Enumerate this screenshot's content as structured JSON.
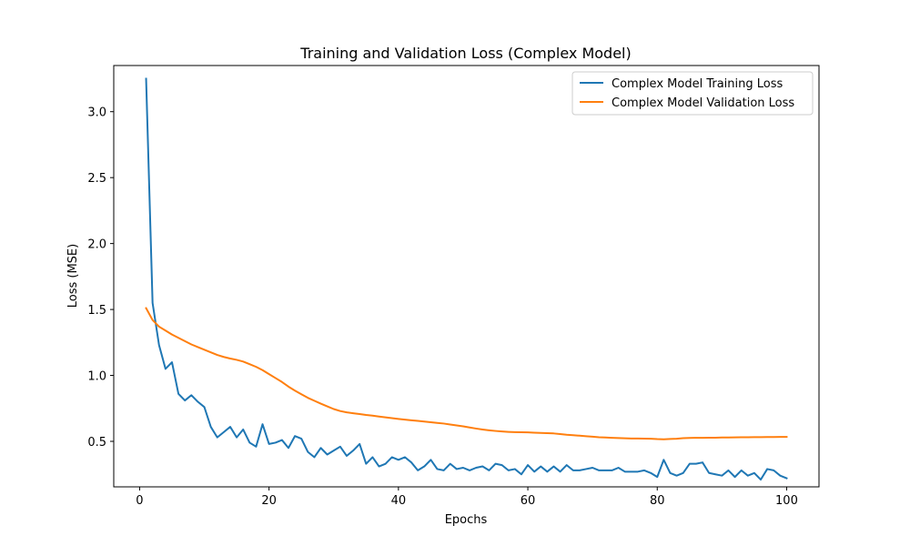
{
  "chart_data": {
    "type": "line",
    "title": "Training and Validation Loss (Complex Model)",
    "xlabel": "Epochs",
    "ylabel": "Loss (MSE)",
    "xlim": [
      -4,
      105
    ],
    "ylim": [
      0.155,
      3.35
    ],
    "xticks": [
      0,
      20,
      40,
      60,
      80,
      100
    ],
    "yticks": [
      0.5,
      1.0,
      1.5,
      2.0,
      2.5,
      3.0
    ],
    "ytick_labels": [
      "0.5",
      "1.0",
      "1.5",
      "2.0",
      "2.5",
      "3.0"
    ],
    "grid": false,
    "legend_position": "top-right",
    "series": [
      {
        "name": "Complex Model Training Loss",
        "color": "#1f77b4",
        "x_start": 1,
        "values": [
          3.25,
          1.55,
          1.23,
          1.05,
          1.1,
          0.86,
          0.81,
          0.85,
          0.8,
          0.76,
          0.61,
          0.53,
          0.57,
          0.61,
          0.53,
          0.59,
          0.49,
          0.46,
          0.63,
          0.48,
          0.49,
          0.51,
          0.45,
          0.54,
          0.52,
          0.42,
          0.38,
          0.45,
          0.4,
          0.43,
          0.46,
          0.39,
          0.43,
          0.48,
          0.33,
          0.38,
          0.31,
          0.33,
          0.38,
          0.36,
          0.38,
          0.34,
          0.28,
          0.31,
          0.36,
          0.29,
          0.28,
          0.33,
          0.29,
          0.3,
          0.28,
          0.3,
          0.31,
          0.28,
          0.33,
          0.32,
          0.28,
          0.29,
          0.25,
          0.32,
          0.27,
          0.31,
          0.27,
          0.31,
          0.27,
          0.32,
          0.28,
          0.28,
          0.29,
          0.3,
          0.28,
          0.28,
          0.28,
          0.3,
          0.27,
          0.27,
          0.27,
          0.28,
          0.26,
          0.23,
          0.36,
          0.26,
          0.24,
          0.26,
          0.33,
          0.33,
          0.34,
          0.26,
          0.25,
          0.24,
          0.28,
          0.23,
          0.28,
          0.24,
          0.26,
          0.21,
          0.29,
          0.28,
          0.24,
          0.22
        ]
      },
      {
        "name": "Complex Model Validation Loss",
        "color": "#ff7f0e",
        "x_start": 1,
        "values": [
          1.51,
          1.42,
          1.37,
          1.34,
          1.31,
          1.285,
          1.26,
          1.235,
          1.215,
          1.195,
          1.175,
          1.155,
          1.14,
          1.128,
          1.118,
          1.105,
          1.085,
          1.065,
          1.04,
          1.01,
          0.98,
          0.95,
          0.915,
          0.885,
          0.857,
          0.83,
          0.808,
          0.786,
          0.765,
          0.745,
          0.73,
          0.72,
          0.713,
          0.707,
          0.7,
          0.695,
          0.688,
          0.682,
          0.676,
          0.67,
          0.665,
          0.66,
          0.655,
          0.65,
          0.645,
          0.64,
          0.635,
          0.628,
          0.621,
          0.614,
          0.605,
          0.597,
          0.59,
          0.584,
          0.579,
          0.575,
          0.572,
          0.57,
          0.569,
          0.568,
          0.566,
          0.564,
          0.562,
          0.56,
          0.555,
          0.55,
          0.547,
          0.543,
          0.539,
          0.535,
          0.531,
          0.529,
          0.527,
          0.525,
          0.523,
          0.522,
          0.522,
          0.521,
          0.52,
          0.517,
          0.516,
          0.518,
          0.52,
          0.524,
          0.526,
          0.527,
          0.527,
          0.528,
          0.528,
          0.529,
          0.529,
          0.53,
          0.531,
          0.531,
          0.532,
          0.532,
          0.533,
          0.533,
          0.534,
          0.534
        ]
      }
    ]
  }
}
